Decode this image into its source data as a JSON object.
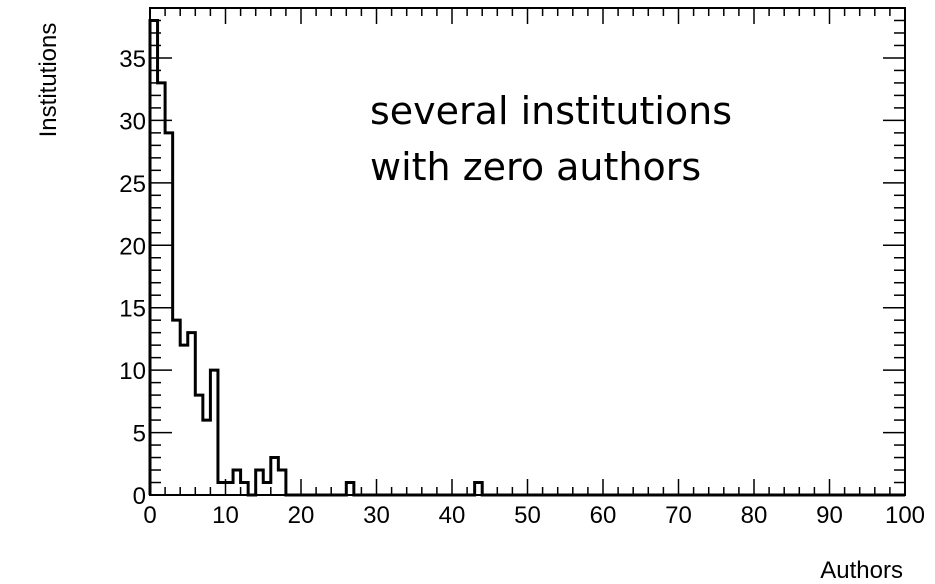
{
  "chart_data": {
    "type": "histogram",
    "xlabel": "Authors",
    "ylabel": "Institutions",
    "xlim": [
      0,
      100
    ],
    "ylim": [
      0,
      39
    ],
    "bin_width": 1,
    "xticks": [
      0,
      10,
      20,
      30,
      40,
      50,
      60,
      70,
      80,
      90,
      100
    ],
    "yticks": [
      0,
      5,
      10,
      15,
      20,
      25,
      30,
      35
    ],
    "values": [
      38,
      33,
      29,
      14,
      12,
      13,
      8,
      6,
      10,
      1,
      1,
      2,
      1,
      0,
      2,
      1,
      3,
      2,
      0,
      0,
      0,
      0,
      0,
      0,
      0,
      0,
      1,
      0,
      0,
      0,
      0,
      0,
      0,
      0,
      0,
      0,
      0,
      0,
      0,
      0,
      0,
      0,
      0,
      1,
      0,
      0,
      0,
      0,
      0,
      0,
      0,
      0,
      0,
      0,
      0,
      0,
      0,
      0,
      0,
      0,
      0,
      0,
      0,
      0,
      0,
      0,
      0,
      0,
      0,
      0,
      0,
      0,
      0,
      0,
      0,
      0,
      0,
      0,
      0,
      0,
      0,
      0,
      0,
      0,
      0,
      0,
      0,
      0,
      0,
      0,
      0,
      0,
      0,
      0,
      0,
      0,
      0,
      0,
      0,
      0
    ],
    "annotation": [
      "several institutions",
      "with zero authors"
    ],
    "line_color": "#000000",
    "grid": false
  }
}
